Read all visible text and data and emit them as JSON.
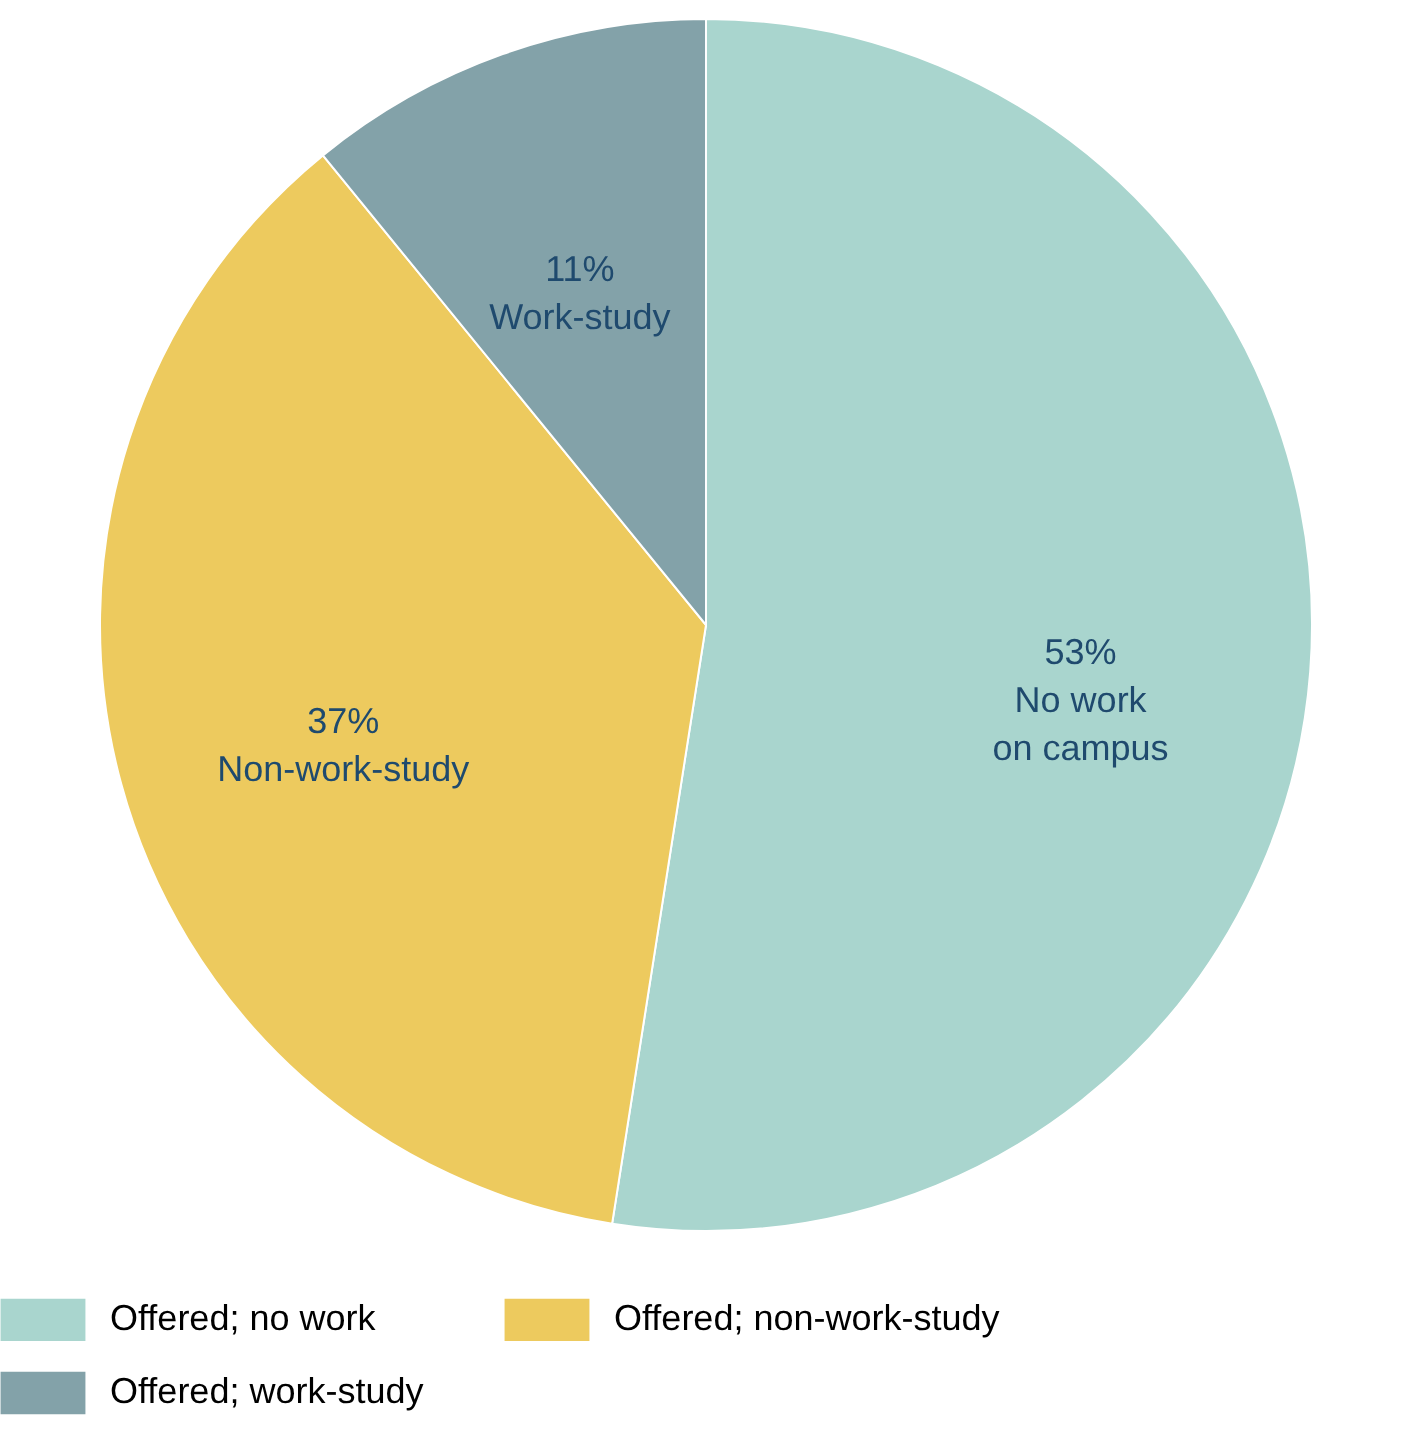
{
  "chart_data": {
    "type": "pie",
    "categories": [
      "Offered; no work",
      "Offered; non-work-study",
      "Offered; work-study"
    ],
    "values": [
      53,
      37,
      11
    ],
    "colors": [
      "#a9d5ce",
      "#edca5e",
      "#83a2a9"
    ],
    "value_labels": [
      "53%",
      "37%",
      "11%"
    ],
    "annotations": [
      "No work\non campus",
      "Non-work-study",
      "Work-study"
    ],
    "legend": "bottom"
  }
}
